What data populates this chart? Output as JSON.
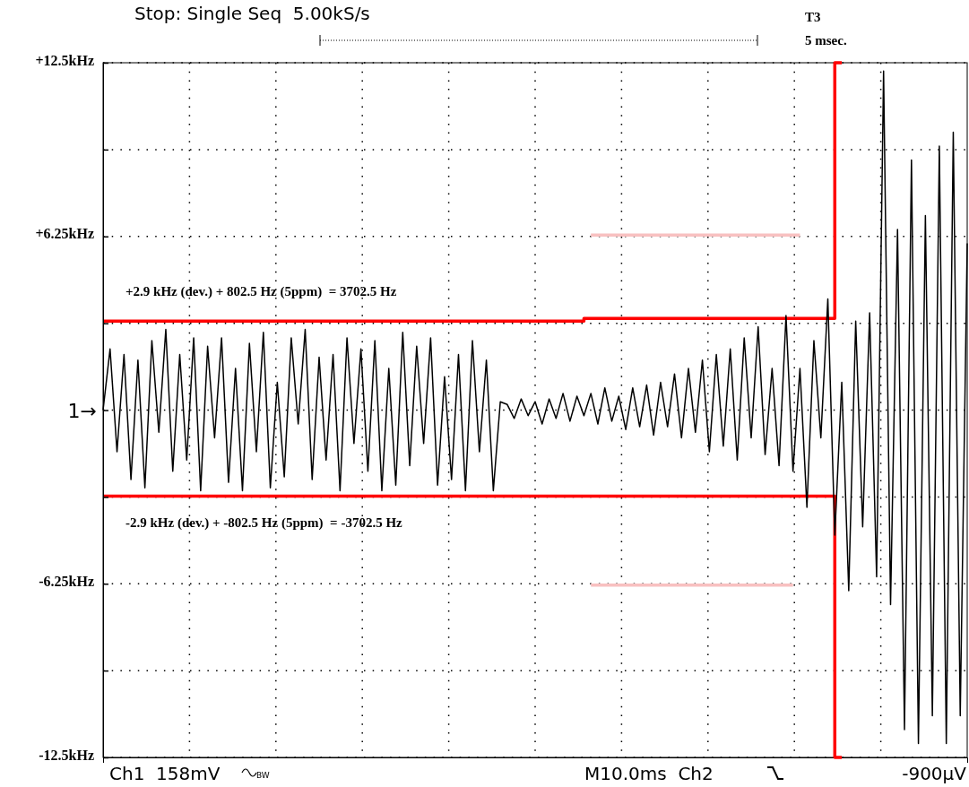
{
  "chart_data": {
    "type": "line",
    "categories": [
      null,
      null,
      null,
      null,
      null,
      null,
      null,
      null,
      null,
      null,
      null,
      null,
      null,
      null,
      null,
      null,
      null,
      null,
      null,
      null,
      null,
      null,
      null,
      null,
      null,
      null,
      null,
      null,
      null,
      null,
      null,
      null,
      null,
      null,
      null,
      null,
      null,
      null,
      null,
      null,
      null,
      null,
      null,
      null,
      null,
      null,
      null,
      null,
      null,
      null,
      null,
      null,
      null,
      null,
      null,
      null,
      null,
      null,
      null,
      null,
      null,
      null,
      null,
      null,
      null,
      null,
      null,
      null,
      null,
      null,
      null,
      null,
      null,
      null,
      null,
      null,
      null,
      null,
      null,
      null,
      null,
      null,
      null,
      null,
      null,
      null,
      null,
      null,
      null,
      null,
      null,
      null,
      null,
      null,
      null,
      null,
      null,
      null,
      null,
      null,
      null,
      null,
      null,
      null,
      null,
      null,
      null,
      null,
      null,
      null,
      null,
      null,
      null,
      null,
      null,
      null,
      null,
      null,
      null,
      null,
      null,
      null,
      null,
      null,
      null
    ],
    "ylim": [
      -12.5,
      12.5
    ],
    "yticks": [
      {
        "value": 12.5,
        "label": "+12.5kHz"
      },
      {
        "value": 9.375,
        "label": null
      },
      {
        "value": 6.25,
        "label": "+6.25kHz"
      },
      {
        "value": 3.125,
        "label": null
      },
      {
        "value": 0,
        "label": null
      },
      {
        "value": -3.125,
        "label": null
      },
      {
        "value": -6.25,
        "label": "-6.25kHz"
      },
      {
        "value": -9.375,
        "label": null
      },
      {
        "value": -12.5,
        "label": "-12.5kHz"
      }
    ],
    "grid": true,
    "marker": "none",
    "line_style": "solid",
    "series": [
      {
        "color": "#000000",
        "values": [
          0,
          2.2,
          -1.5,
          2.0,
          -2.5,
          1.8,
          -2.8,
          2.5,
          -0.8,
          2.9,
          -2.2,
          2.0,
          -1.8,
          2.6,
          -2.9,
          2.3,
          -1.0,
          2.6,
          -2.6,
          1.5,
          -2.9,
          2.4,
          -1.5,
          2.8,
          -2.8,
          1.0,
          -2.4,
          2.6,
          -0.5,
          2.9,
          -2.5,
          1.9,
          -1.8,
          2.0,
          -2.9,
          2.6,
          -1.2,
          2.2,
          -2.2,
          2.5,
          -2.9,
          1.5,
          -2.7,
          2.8,
          -2.0,
          2.3,
          -1.2,
          2.6,
          -2.7,
          1.2,
          -2.5,
          2.0,
          -2.9,
          2.5,
          -1.5,
          1.8,
          -2.9,
          0.3,
          0.2,
          -0.3,
          0.4,
          -0.2,
          0.3,
          -0.5,
          0.4,
          -0.3,
          0.6,
          -0.4,
          0.5,
          -0.2,
          0.6,
          -0.5,
          0.8,
          -0.4,
          0.5,
          -0.7,
          0.8,
          -0.6,
          0.9,
          -0.9,
          1.0,
          -0.6,
          1.3,
          -1.0,
          1.5,
          -0.8,
          1.8,
          -1.5,
          2.0,
          -1.3,
          2.2,
          -1.8,
          2.6,
          -1.0,
          3.0,
          -1.6,
          1.5,
          -2.0,
          3.4,
          -2.2,
          1.5,
          -3.5,
          2.5,
          -1.0,
          4.0,
          -4.5,
          1.0,
          -6.5,
          3.2,
          -4.2,
          3.5,
          -6.0,
          12.2,
          -7.0,
          6.5,
          -11.5,
          9.0,
          -12.0,
          7.0,
          -11.0,
          9.5,
          -12.0,
          10.0,
          -11.0,
          6.0
        ]
      },
      {
        "type": "step",
        "color": "#ff0000",
        "values": [
          3.2,
          3.2,
          3.2,
          3.2,
          3.2,
          3.2,
          3.2,
          3.2,
          3.2,
          3.2,
          3.2,
          3.2,
          3.2,
          3.2,
          3.2,
          3.2,
          3.2,
          3.2,
          3.2,
          3.2,
          3.2,
          3.2,
          3.2,
          3.2,
          3.2,
          3.2,
          3.2,
          3.2,
          3.2,
          3.2,
          3.2,
          3.2,
          3.2,
          3.2,
          3.2,
          3.2,
          3.2,
          3.2,
          3.2,
          3.2,
          3.2,
          3.2,
          3.2,
          3.2,
          3.2,
          3.2,
          3.2,
          3.2,
          3.2,
          3.2,
          3.2,
          3.2,
          3.2,
          3.2,
          3.2,
          3.2,
          3.2,
          3.2,
          3.2,
          3.2,
          3.2,
          3.2,
          3.2,
          3.2,
          3.2,
          3.2,
          3.2,
          3.2,
          3.2,
          3.2,
          3.3,
          3.3,
          3.3,
          3.3,
          3.3,
          3.3,
          3.3,
          3.3,
          3.3,
          3.3,
          3.3,
          3.3,
          3.3,
          3.3,
          3.3,
          3.3,
          3.3,
          3.3,
          3.3,
          3.3,
          3.3,
          3.3,
          3.3,
          3.3,
          3.3,
          3.3,
          3.3,
          3.3,
          3.3,
          3.3,
          3.3,
          3.3,
          3.3,
          3.3,
          3.3,
          3.3,
          12.5,
          null,
          null,
          null,
          null,
          null,
          null,
          null,
          null,
          null,
          null,
          null,
          null,
          null,
          null,
          null,
          null,
          null,
          null
        ]
      },
      {
        "type": "step",
        "color": "#ff0000",
        "values": [
          -3.1,
          -3.1,
          -3.1,
          -3.1,
          -3.1,
          -3.1,
          -3.1,
          -3.1,
          -3.1,
          -3.1,
          -3.1,
          -3.1,
          -3.1,
          -3.1,
          -3.1,
          -3.1,
          -3.1,
          -3.1,
          -3.1,
          -3.1,
          -3.1,
          -3.1,
          -3.1,
          -3.1,
          -3.1,
          -3.1,
          -3.1,
          -3.1,
          -3.1,
          -3.1,
          -3.1,
          -3.1,
          -3.1,
          -3.1,
          -3.1,
          -3.1,
          -3.1,
          -3.1,
          -3.1,
          -3.1,
          -3.1,
          -3.1,
          -3.1,
          -3.1,
          -3.1,
          -3.1,
          -3.1,
          -3.1,
          -3.1,
          -3.1,
          -3.1,
          -3.1,
          -3.1,
          -3.1,
          -3.1,
          -3.1,
          -3.1,
          -3.1,
          -3.1,
          -3.1,
          -3.1,
          -3.1,
          -3.1,
          -3.1,
          -3.1,
          -3.1,
          -3.1,
          -3.1,
          -3.1,
          -3.1,
          -3.1,
          -3.1,
          -3.1,
          -3.1,
          -3.1,
          -3.1,
          -3.1,
          -3.1,
          -3.1,
          -3.1,
          -3.1,
          -3.1,
          -3.1,
          -3.1,
          -3.1,
          -3.1,
          -3.1,
          -3.1,
          -3.1,
          -3.1,
          -3.1,
          -3.1,
          -3.1,
          -3.1,
          -3.1,
          -3.1,
          -3.1,
          -3.1,
          -3.1,
          -3.1,
          -3.1,
          -3.1,
          -3.1,
          -3.1,
          -3.1,
          -3.1,
          -12.5,
          null,
          null,
          null,
          null,
          null,
          null,
          null,
          null,
          null,
          null,
          null,
          null,
          null,
          null,
          null,
          null,
          null,
          null
        ]
      },
      {
        "type": "step",
        "color": "#f8c0c0",
        "values": [
          null,
          null,
          null,
          null,
          null,
          null,
          null,
          null,
          null,
          null,
          null,
          null,
          null,
          null,
          null,
          null,
          null,
          null,
          null,
          null,
          null,
          null,
          null,
          null,
          null,
          null,
          null,
          null,
          null,
          null,
          null,
          null,
          null,
          null,
          null,
          null,
          null,
          null,
          null,
          null,
          null,
          null,
          null,
          null,
          null,
          null,
          null,
          null,
          null,
          null,
          null,
          null,
          null,
          null,
          null,
          null,
          null,
          null,
          null,
          null,
          null,
          null,
          null,
          null,
          null,
          null,
          null,
          null,
          null,
          null,
          6.3,
          6.3,
          6.3,
          6.3,
          6.3,
          6.3,
          6.3,
          6.3,
          6.3,
          6.3,
          6.3,
          6.3,
          6.3,
          6.3,
          6.3,
          6.3,
          6.3,
          6.3,
          6.3,
          6.3,
          6.3,
          6.3,
          6.3,
          6.3,
          6.3,
          6.3,
          6.3,
          6.3,
          6.3,
          6.3,
          6.3,
          null,
          null,
          null,
          null,
          null,
          null,
          null,
          null,
          null,
          null,
          null,
          null,
          null,
          null,
          null,
          null,
          null,
          null,
          null,
          null,
          null,
          null,
          null,
          null
        ]
      },
      {
        "type": "step",
        "color": "#f8c0c0",
        "values": [
          null,
          null,
          null,
          null,
          null,
          null,
          null,
          null,
          null,
          null,
          null,
          null,
          null,
          null,
          null,
          null,
          null,
          null,
          null,
          null,
          null,
          null,
          null,
          null,
          null,
          null,
          null,
          null,
          null,
          null,
          null,
          null,
          null,
          null,
          null,
          null,
          null,
          null,
          null,
          null,
          null,
          null,
          null,
          null,
          null,
          null,
          null,
          null,
          null,
          null,
          null,
          null,
          null,
          null,
          null,
          null,
          null,
          null,
          null,
          null,
          null,
          null,
          null,
          null,
          null,
          null,
          null,
          null,
          null,
          null,
          -6.3,
          -6.3,
          -6.3,
          -6.3,
          -6.3,
          -6.3,
          -6.3,
          -6.3,
          -6.3,
          -6.3,
          -6.3,
          -6.3,
          -6.3,
          -6.3,
          -6.3,
          -6.3,
          -6.3,
          -6.3,
          -6.3,
          -6.3,
          -6.3,
          -6.3,
          -6.3,
          -6.3,
          -6.3,
          -6.3,
          -6.3,
          -6.3,
          -6.3,
          -6.3,
          null,
          null,
          null,
          null,
          null,
          null,
          null,
          null,
          null,
          null,
          null,
          null,
          null,
          null,
          null,
          null,
          null,
          null,
          null,
          null,
          null,
          null,
          null,
          null,
          null
        ]
      }
    ],
    "annotations": [
      "+2.9 kHz (dev.) + 802.5 Hz (5ppm)  = 3702.5 Hz",
      "-2.9 kHz (dev.) + -802.5 Hz (5ppm)  = -3702.5 Hz",
      "T3",
      "5 msec.",
      "Stop: Single Seq  5.00kS/s",
      "Ch1  158mV",
      "M10.0ms  Ch2",
      "-900µV",
      "1→",
      "BW"
    ]
  }
}
